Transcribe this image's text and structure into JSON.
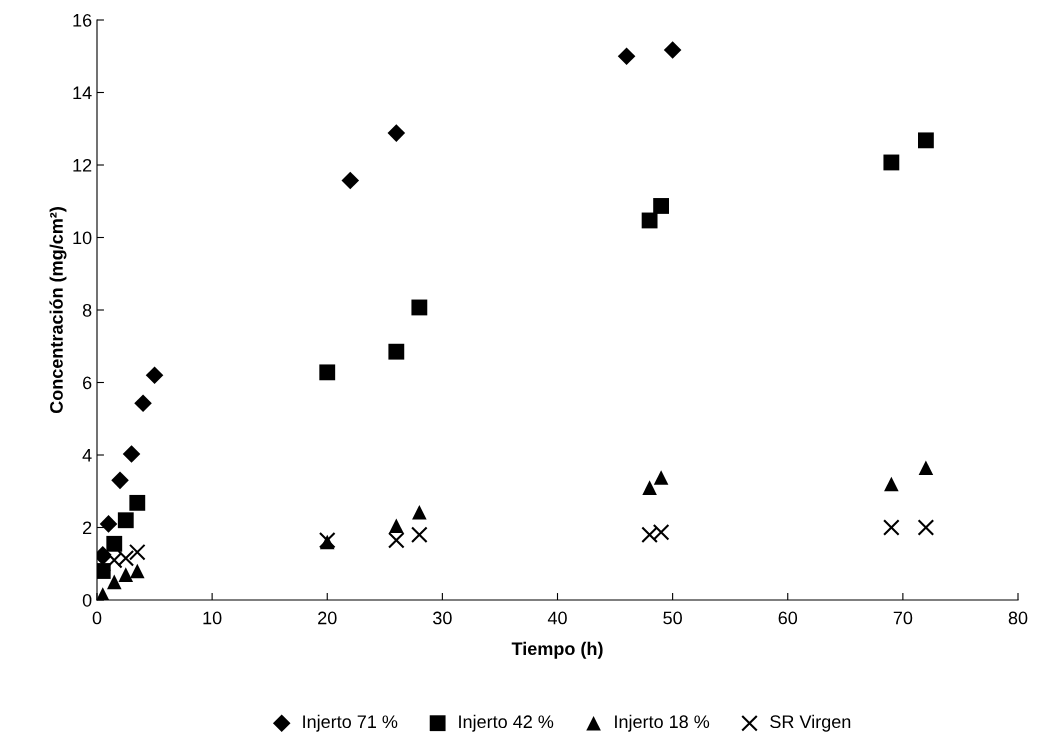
{
  "chart_data": {
    "type": "scatter",
    "xlabel": "Tiempo (h)",
    "ylabel": "Concentración (mg/cm²)",
    "xlim": [
      0,
      80
    ],
    "ylim": [
      0,
      16
    ],
    "xticks": [
      0,
      10,
      20,
      30,
      40,
      50,
      60,
      70,
      80
    ],
    "yticks": [
      0,
      2,
      4,
      6,
      8,
      10,
      12,
      14,
      16
    ],
    "grid": false,
    "legend": "bottom",
    "series": [
      {
        "name": "Injerto 71 %",
        "color": "#000000",
        "marker": "diamond",
        "x": [
          0.5,
          1,
          2,
          3,
          4,
          5,
          22,
          26,
          46,
          50
        ],
        "values": [
          1.25,
          2.1,
          3.3,
          4.03,
          5.43,
          6.2,
          11.57,
          12.88,
          15.0,
          15.17
        ]
      },
      {
        "name": "Injerto 42 %",
        "color": "#000000",
        "marker": "square",
        "x": [
          0.5,
          1.5,
          2.5,
          3.5,
          20,
          26,
          28,
          48,
          49,
          69,
          72
        ],
        "values": [
          0.8,
          1.55,
          2.2,
          2.68,
          6.28,
          6.85,
          8.07,
          10.47,
          10.87,
          12.07,
          12.68
        ]
      },
      {
        "name": "Injerto 18 %",
        "color": "#000000",
        "marker": "triangle",
        "x": [
          0.5,
          1.5,
          2.5,
          3.5,
          20,
          26,
          28,
          48,
          49,
          69,
          72
        ],
        "values": [
          0.15,
          0.5,
          0.7,
          0.8,
          1.6,
          2.05,
          2.42,
          3.1,
          3.38,
          3.2,
          3.65
        ]
      },
      {
        "name": "SR Virgen",
        "color": "#000000",
        "marker": "cross",
        "x": [
          0.5,
          1.5,
          2.5,
          3.5,
          20,
          26,
          28,
          48,
          49,
          69,
          72
        ],
        "values": [
          1.0,
          1.1,
          1.15,
          1.32,
          1.65,
          1.65,
          1.8,
          1.8,
          1.87,
          2.0,
          2.0
        ]
      }
    ]
  }
}
